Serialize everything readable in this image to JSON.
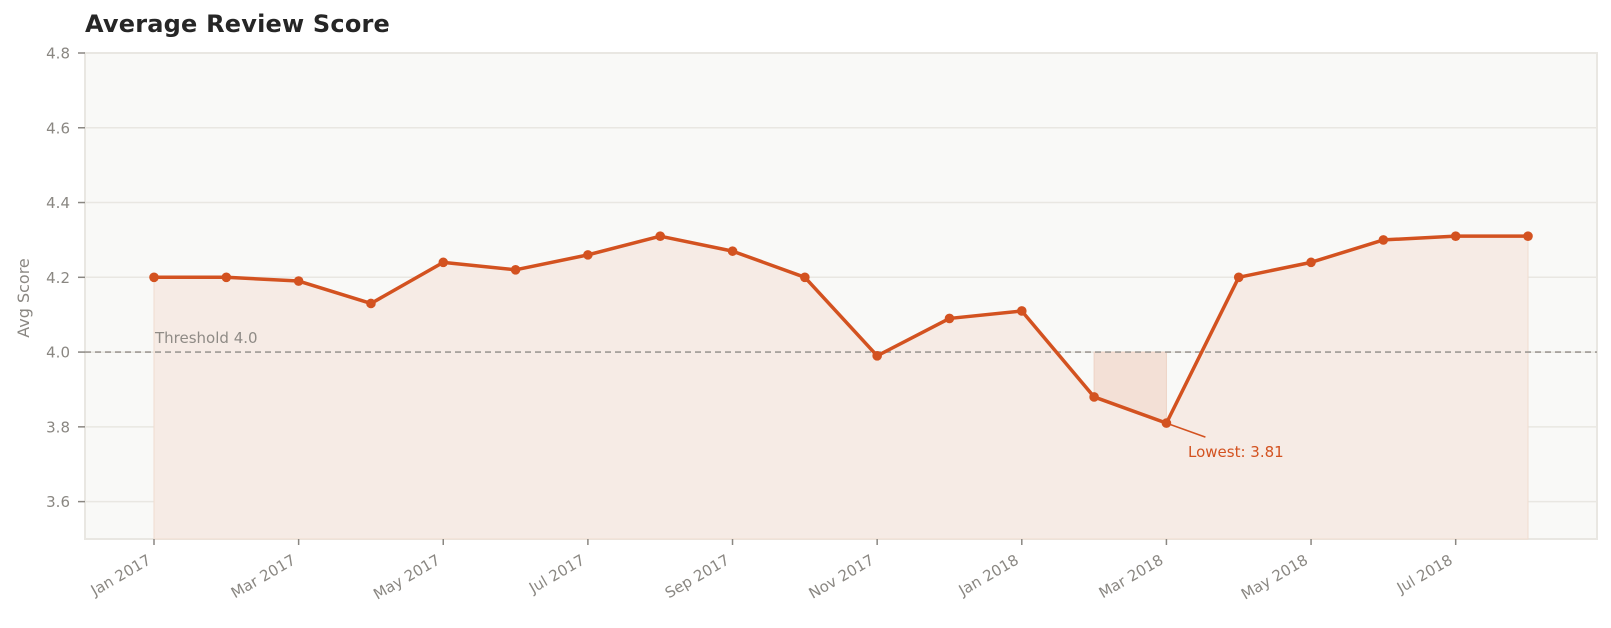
{
  "chart_data": {
    "type": "line",
    "title": "Average Review Score",
    "xlabel": "",
    "ylabel": "Avg Score",
    "ylim": [
      3.5,
      4.8
    ],
    "yticks": [
      3.6,
      3.8,
      4.0,
      4.2,
      4.4,
      4.6,
      4.8
    ],
    "ytick_labels": [
      "3.6",
      "3.8",
      "4.0",
      "4.2",
      "4.4",
      "4.6",
      "4.8"
    ],
    "xtick_labels": [
      "Jan 2017",
      "Mar 2017",
      "May 2017",
      "Jul 2017",
      "Sep 2017",
      "Nov 2017",
      "Jan 2018",
      "Mar 2018",
      "May 2018",
      "Jul 2018"
    ],
    "grid": true,
    "legend": null,
    "x": [
      "2017-01",
      "2017-02",
      "2017-03",
      "2017-04",
      "2017-05",
      "2017-06",
      "2017-07",
      "2017-08",
      "2017-09",
      "2017-10",
      "2017-11",
      "2017-12",
      "2018-01",
      "2018-02",
      "2018-03",
      "2018-04",
      "2018-05",
      "2018-06",
      "2018-07",
      "2018-08"
    ],
    "series": [
      {
        "name": "Avg Score",
        "values": [
          4.2,
          4.2,
          4.19,
          4.13,
          4.24,
          4.22,
          4.26,
          4.31,
          4.27,
          4.2,
          3.99,
          4.09,
          4.11,
          3.88,
          3.81,
          4.2,
          4.24,
          4.3,
          4.31,
          4.31
        ]
      }
    ],
    "threshold": {
      "value": 4.0,
      "label": "Threshold 4.0"
    },
    "annotations": [
      {
        "x": "2018-03",
        "y": 3.81,
        "text": "Lowest: 3.81"
      }
    ],
    "colors": {
      "line": "#d35220",
      "area_fill": "#f6ebe5",
      "below_threshold_fill": "#f3e0d6",
      "plot_bg": "#f9f9f7",
      "grid": "#e9e7e2",
      "threshold_line": "#9e9a95",
      "text_muted": "#8a8782",
      "title": "#262626"
    }
  }
}
